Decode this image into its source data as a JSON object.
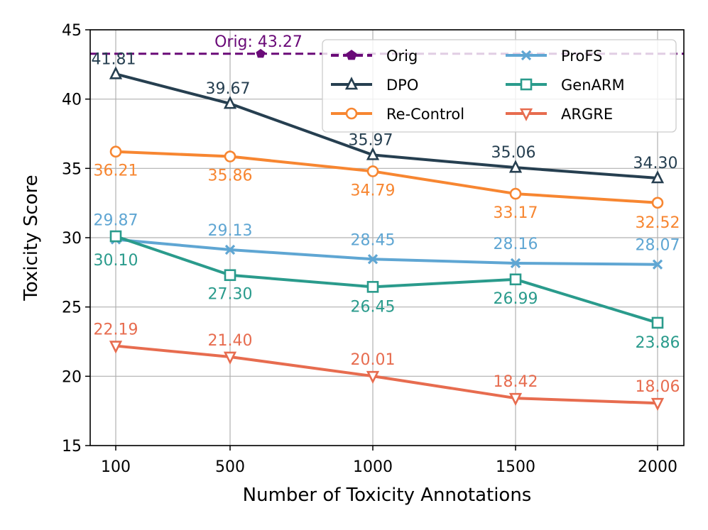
{
  "chart_data": {
    "type": "line",
    "x": [
      "100",
      "500",
      "1000",
      "1500",
      "2000"
    ],
    "xlabel": "Number of Toxicity Annotations",
    "ylabel": "Toxicity Score",
    "ylim": [
      15,
      45
    ],
    "yticks": [
      "15",
      "20",
      "25",
      "30",
      "35",
      "40",
      "45"
    ],
    "grid": true,
    "legend_position": "top-right",
    "reference": {
      "name": "Orig",
      "value": 43.27,
      "label": "Orig: 43.27",
      "color": "#6a0a78"
    },
    "series": [
      {
        "name": "DPO",
        "color": "#263f50",
        "marker": "triangle-up",
        "values": [
          41.81,
          39.67,
          35.97,
          35.06,
          34.3
        ],
        "labels": [
          "41.81",
          "39.67",
          "35.97",
          "35.06",
          "34.30"
        ]
      },
      {
        "name": "Re-Control",
        "color": "#f78631",
        "marker": "circle",
        "values": [
          36.21,
          35.86,
          34.79,
          33.17,
          32.52
        ],
        "labels": [
          "36.21",
          "35.86",
          "34.79",
          "33.17",
          "32.52"
        ]
      },
      {
        "name": "ProFS",
        "color": "#5fa6d3",
        "marker": "x",
        "values": [
          29.87,
          29.13,
          28.45,
          28.16,
          28.07
        ],
        "labels": [
          "29.87",
          "29.13",
          "28.45",
          "28.16",
          "28.07"
        ]
      },
      {
        "name": "GenARM",
        "color": "#2a9b8c",
        "marker": "square",
        "values": [
          30.1,
          27.3,
          26.45,
          26.99,
          23.86
        ],
        "labels": [
          "30.10",
          "27.30",
          "26.45",
          "26.99",
          "23.86"
        ]
      },
      {
        "name": "ARGRE",
        "color": "#e76c4f",
        "marker": "triangle-down",
        "values": [
          22.19,
          21.4,
          20.01,
          18.42,
          18.06
        ],
        "labels": [
          "22.19",
          "21.40",
          "20.01",
          "18.42",
          "18.06"
        ]
      }
    ],
    "legend": [
      "Orig",
      "DPO",
      "Re-Control",
      "ProFS",
      "GenARM",
      "ARGRE"
    ]
  }
}
